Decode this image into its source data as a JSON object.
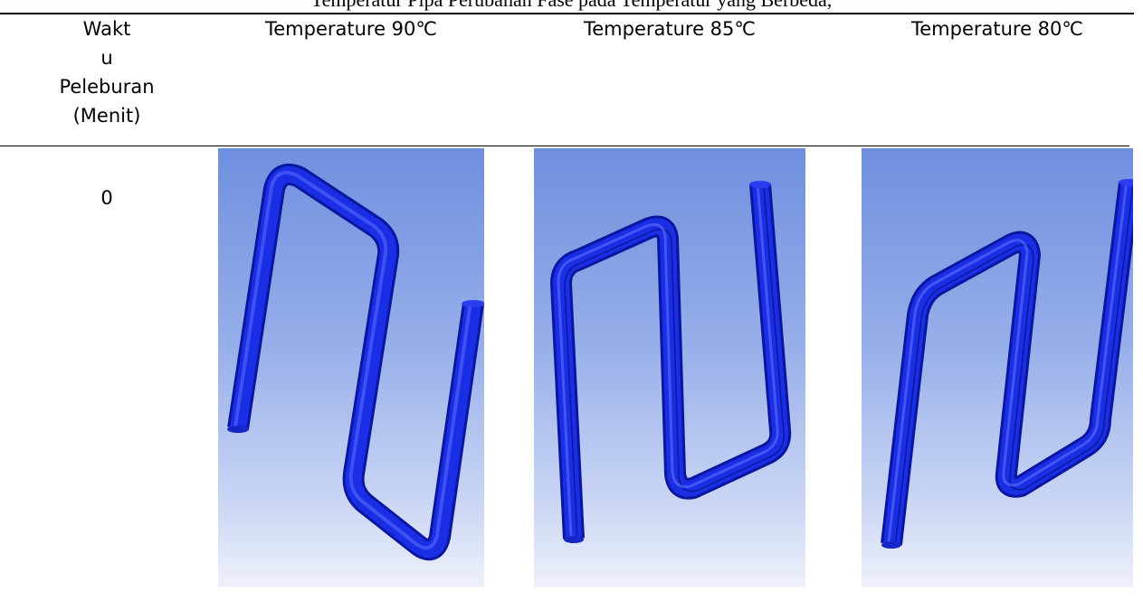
{
  "table": {
    "caption_fragment": "Temperatur Pipa Perubahan Fase pada Temperatur yang Berbeda,",
    "headers": {
      "time_lines": [
        "Wakt",
        "u",
        "Peleburan",
        "(Menit)"
      ],
      "temp_90": "Temperature 90℃",
      "temp_85": "Temperature 85℃",
      "temp_80": "Temperature 80℃"
    },
    "rows": [
      {
        "time": "0"
      }
    ]
  },
  "colors": {
    "pipe": "#1a2ee6",
    "pipe_dark": "#0a16a0",
    "pipe_highlight": "#6b7cff",
    "background_top": "#6f8fdf",
    "background_bottom": "#eef1fb"
  },
  "icons": [
    "serpentine-pipe-model"
  ]
}
